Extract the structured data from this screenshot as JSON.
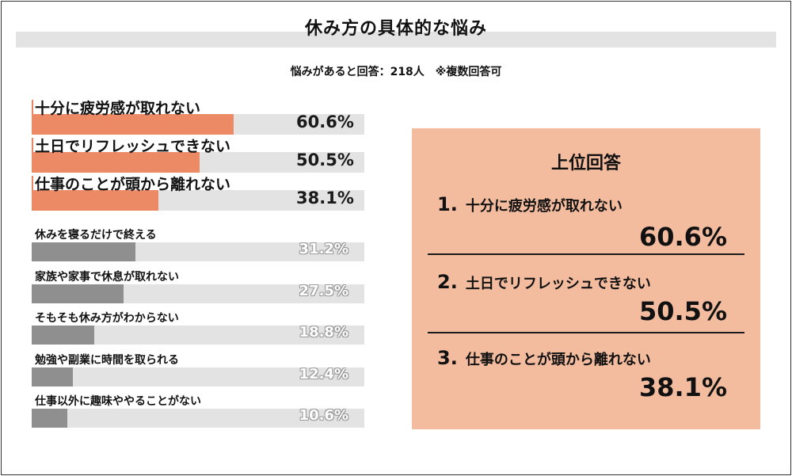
{
  "title": "休み方の具体的な悩み",
  "subtitle": "悩みがあると回答：218人　※複数回答可",
  "colors": {
    "accent": "#ec8a66",
    "neutral": "#8f8f8f",
    "track": "#e3e3e3",
    "panel": "#f4bc9f"
  },
  "chart_data": {
    "type": "bar",
    "orientation": "horizontal",
    "title": "休み方の具体的な悩み",
    "categories": [
      "十分に疲労感が取れない",
      "土日でリフレッシュできない",
      "仕事のことが頭から離れない",
      "休みを寝るだけで終える",
      "家族や家事で休息が取れない",
      "そもそも休み方がわからない",
      "勉強や副業に時間を取られる",
      "仕事以外に趣味ややることがない"
    ],
    "values": [
      60.6,
      50.5,
      38.1,
      31.2,
      27.5,
      18.8,
      12.4,
      10.6
    ],
    "value_labels": [
      "60.6%",
      "50.5%",
      "38.1%",
      "31.2%",
      "27.5%",
      "18.8%",
      "12.4%",
      "10.6%"
    ],
    "highlighted_count": 3,
    "xlim": [
      0,
      100
    ],
    "unit": "%"
  },
  "ranking": {
    "title": "上位回答",
    "items": [
      {
        "rank": "1.",
        "label": "十分に疲労感が取れない",
        "value": "60.6%"
      },
      {
        "rank": "2.",
        "label": "土日でリフレッシュできない",
        "value": "50.5%"
      },
      {
        "rank": "3.",
        "label": "仕事のことが頭から離れない",
        "value": "38.1%"
      }
    ]
  }
}
